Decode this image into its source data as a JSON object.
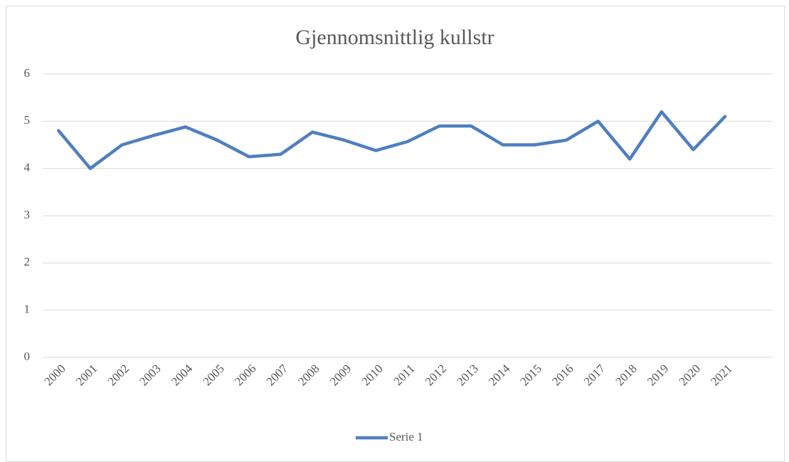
{
  "chart_data": {
    "type": "line",
    "title": "Gjennomsnittlig kullstr",
    "categories": [
      "2000",
      "2001",
      "2002",
      "2003",
      "2004",
      "2005",
      "2006",
      "2007",
      "2008",
      "2009",
      "2010",
      "2011",
      "2012",
      "2013",
      "2014",
      "2015",
      "2016",
      "2017",
      "2018",
      "2019",
      "2020",
      "2021",
      null
    ],
    "series": [
      {
        "name": "Serie 1",
        "color": "#4f7fbf",
        "values": [
          4.8,
          4.0,
          4.5,
          4.7,
          4.88,
          4.6,
          4.25,
          4.3,
          4.77,
          4.6,
          4.38,
          4.57,
          4.9,
          4.9,
          4.5,
          4.5,
          4.6,
          5.0,
          4.2,
          5.2,
          4.4,
          5.1,
          null
        ]
      }
    ],
    "ylim": [
      0,
      6
    ],
    "yticks": [
      0,
      1,
      2,
      3,
      4,
      5,
      6
    ],
    "grid": true,
    "legend": "bottom"
  }
}
